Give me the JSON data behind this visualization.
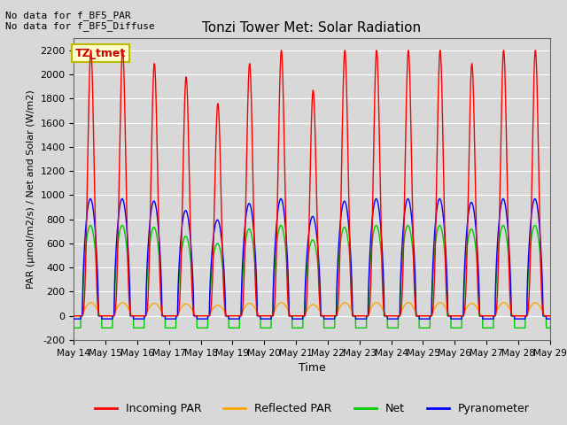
{
  "title": "Tonzi Tower Met: Solar Radiation",
  "xlabel": "Time",
  "ylabel": "PAR (μmol/m2/s) / Net and Solar (W/m2)",
  "ylim": [
    -200,
    2300
  ],
  "yticks": [
    -200,
    0,
    200,
    400,
    600,
    800,
    1000,
    1200,
    1400,
    1600,
    1800,
    2000,
    2200
  ],
  "x_start": 14,
  "x_end": 29,
  "x_ticks": [
    14,
    15,
    16,
    17,
    18,
    19,
    20,
    21,
    22,
    23,
    24,
    25,
    26,
    27,
    28,
    29
  ],
  "x_tick_labels": [
    "May 14",
    "May 15",
    "May 16",
    "May 17",
    "May 18",
    "May 19",
    "May 20",
    "May 21",
    "May 22",
    "May 23",
    "May 24",
    "May 25",
    "May 26",
    "May 27",
    "May 28",
    "May 29"
  ],
  "plot_bg_color": "#d8d8d8",
  "fig_bg_color": "#d8d8d8",
  "grid_color": "#ffffff",
  "no_data_text1": "No data for f_BF5_PAR",
  "no_data_text2": "No data for f_BF5_Diffuse",
  "tz_tmet_label": "TZ_tmet",
  "legend_entries": [
    "Incoming PAR",
    "Reflected PAR",
    "Net",
    "Pyranometer"
  ],
  "legend_colors": [
    "#ff0000",
    "#ffa500",
    "#00cc00",
    "#0000ff"
  ],
  "incoming_par_color": "#ff0000",
  "reflected_par_color": "#ffa500",
  "net_color": "#00cc00",
  "pyranometer_color": "#0000ff",
  "n_days": 15,
  "peak_incoming": 2200,
  "peak_reflected": 110,
  "peak_net": 750,
  "peak_pyranometer": 970,
  "night_net": -100,
  "night_pyranometer": -25
}
